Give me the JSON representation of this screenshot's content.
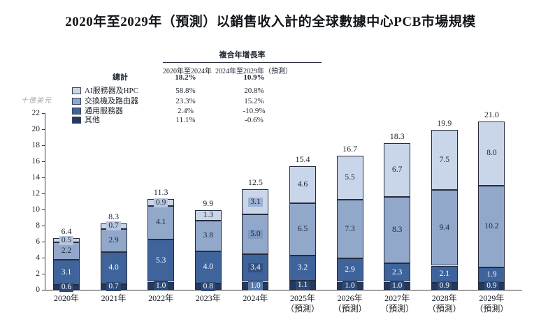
{
  "title": "2020年至2029年（預測）以銷售收入計的全球數據中心PCB市場規模",
  "cagr_table": {
    "header": "複合年增長率",
    "col_headers": [
      "2020年至2024年",
      "2024年至2029年（預測）"
    ],
    "rows": [
      {
        "label": "總計",
        "values": [
          "18.2%",
          "10.9%"
        ],
        "bold": true,
        "swatch": null
      },
      {
        "label": "AI服務器及HPC",
        "values": [
          "58.8%",
          "20.8%"
        ],
        "bold": false,
        "swatch": "#c9d5e8"
      },
      {
        "label": "交換機及路由器",
        "values": [
          "23.3%",
          "15.2%"
        ],
        "bold": false,
        "swatch": "#92a8cb"
      },
      {
        "label": "通用服務器",
        "values": [
          "2.4%",
          "-10.9%"
        ],
        "bold": false,
        "swatch": "#3f639b"
      },
      {
        "label": "其他",
        "values": [
          "11.1%",
          "-0.6%"
        ],
        "bold": false,
        "swatch": "#24395f"
      }
    ]
  },
  "chart_data": {
    "type": "bar",
    "stacked": true,
    "title": "2020年至2029年（預測）以銷售收入計的全球數據中心PCB市場規模",
    "xlabel": "",
    "ylabel": "十億美元",
    "ylim": [
      0,
      22
    ],
    "ytick_step": 2,
    "grid": false,
    "legend_position": "top-left",
    "categories": [
      {
        "label": "2020年",
        "sublabel": ""
      },
      {
        "label": "2021年",
        "sublabel": ""
      },
      {
        "label": "2022年",
        "sublabel": ""
      },
      {
        "label": "2023年",
        "sublabel": ""
      },
      {
        "label": "2024年",
        "sublabel": ""
      },
      {
        "label": "2025年",
        "sublabel": "（預測）"
      },
      {
        "label": "2026年",
        "sublabel": "（預測）"
      },
      {
        "label": "2027年",
        "sublabel": "（預測）"
      },
      {
        "label": "2028年",
        "sublabel": "（預測）"
      },
      {
        "label": "2029年",
        "sublabel": "（預測）"
      }
    ],
    "series": [
      {
        "name": "其他",
        "color": "#24395f",
        "text": "light",
        "values": [
          0.6,
          0.7,
          1.0,
          0.8,
          1.0,
          1.1,
          1.0,
          1.0,
          0.9,
          0.9
        ]
      },
      {
        "name": "通用服務器",
        "color": "#3f639b",
        "text": "light",
        "values": [
          3.1,
          4.0,
          5.3,
          4.0,
          3.4,
          3.2,
          2.9,
          2.3,
          2.1,
          1.9
        ]
      },
      {
        "name": "交換機及路由器",
        "color": "#92a8cb",
        "text": "dark",
        "values": [
          2.2,
          2.9,
          4.1,
          3.8,
          5.0,
          6.5,
          7.3,
          8.3,
          9.4,
          10.2
        ]
      },
      {
        "name": "AI服務器及HPC",
        "color": "#c9d5e8",
        "text": "dark",
        "values": [
          0.5,
          0.7,
          0.9,
          1.3,
          3.1,
          4.6,
          5.5,
          6.7,
          7.5,
          8.0
        ]
      }
    ],
    "totals": [
      6.4,
      8.3,
      11.3,
      9.9,
      12.5,
      15.4,
      16.7,
      18.3,
      19.9,
      21.0
    ],
    "highlight_category": "2024年",
    "highlight_label_colors": [
      "#5d7bab",
      "#32517e",
      "#7e97c0",
      "#9db2d3"
    ]
  }
}
